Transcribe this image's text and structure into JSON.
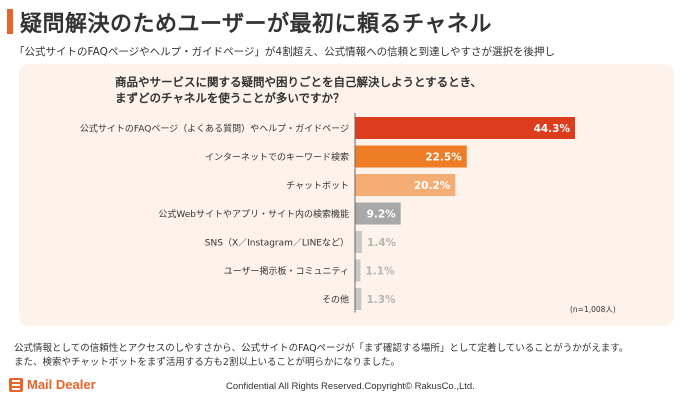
{
  "header": {
    "title": "疑問解決のためユーザーが最初に頼るチャネル",
    "subtitle": "「公式サイトのFAQページやヘルプ・ガイドページ」が4割超え、公式情報への信頼と到達しやすさが選択を後押し"
  },
  "question": {
    "line1": "商品やサービスに関する疑問や困りごとを自己解決しようとするとき、",
    "line2": "まずどのチャネルを使うことが多いですか？"
  },
  "chart_data": {
    "type": "bar",
    "orientation": "horizontal",
    "categories": [
      "公式サイトのFAQページ（よくある質問）やヘルプ・ガイドページ",
      "インターネットでのキーワード検索",
      "チャットボット",
      "公式Webサイトやアプリ・サイト内の検索機能",
      "SNS（X／Instagram／LINEなど）",
      "ユーザー掲示板・コミュニティ",
      "その他"
    ],
    "values": [
      44.3,
      22.5,
      20.2,
      9.2,
      1.4,
      1.1,
      1.3
    ],
    "value_labels": [
      "44.3%",
      "22.5%",
      "20.2%",
      "9.2%",
      "1.4%",
      "1.1%",
      "1.3%"
    ],
    "colors": [
      "#dd3d1c",
      "#ee7d26",
      "#f4ae75",
      "#a8a8a8",
      "#c8c8c8",
      "#c8c8c8",
      "#c8c8c8"
    ],
    "xlim": [
      0,
      44.3
    ],
    "grid": false,
    "legend": "none"
  },
  "note": "(n=1,008人)",
  "footer": {
    "line1": "公式情報としての信頼性とアクセスのしやすさから、公式サイトのFAQページが「まず確認する場所」として定着していることがうかがえます。",
    "line2": "また、検索やチャットボットをまず活用する方も2割以上いることが明らかになりました。"
  },
  "brand": {
    "logo_text": "Mail Dealer",
    "copyright": "Confidential All Rights Reserved.Copyright© RakusCo.,Ltd.",
    "accent_color": "#e8642a"
  }
}
